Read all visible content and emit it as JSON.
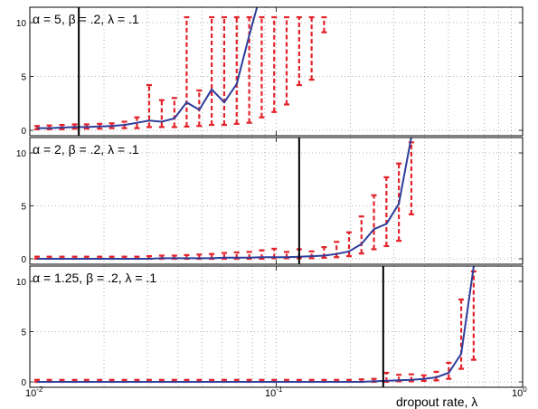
{
  "chart_data": [
    {
      "type": "line",
      "annotation": "α = 5,  β = .2,  λ = .1",
      "xscale": "log",
      "xlim": [
        0.01,
        1
      ],
      "ylim": [
        0,
        10
      ],
      "yticks": [
        0,
        5,
        10
      ],
      "grid": "dotted",
      "threshold_x": 0.0158,
      "x": [
        0.0107,
        0.012,
        0.0135,
        0.0152,
        0.017,
        0.0192,
        0.0215,
        0.0242,
        0.0272,
        0.0305,
        0.0343,
        0.0386,
        0.0433,
        0.0487,
        0.0547,
        0.0615,
        0.0691,
        0.0777,
        0.0873,
        0.0981,
        0.1102,
        0.1239,
        0.1392,
        0.1564
      ],
      "mean": [
        0.2,
        0.2,
        0.25,
        0.3,
        0.3,
        0.35,
        0.4,
        0.5,
        0.7,
        0.9,
        0.8,
        1.1,
        2.6,
        1.9,
        3.8,
        2.6,
        4.3,
        8.8,
        13,
        null,
        null,
        null,
        null,
        null
      ],
      "error_low": [
        0.1,
        0.1,
        0.1,
        0.15,
        0.15,
        0.15,
        0.2,
        0.2,
        0.2,
        0.3,
        0.3,
        0.3,
        0.35,
        0.4,
        0.5,
        0.5,
        0.6,
        0.7,
        1.2,
        1.7,
        2.4,
        4.2,
        4.7,
        9.1
      ],
      "error_high": [
        0.4,
        0.45,
        0.5,
        0.55,
        0.55,
        0.6,
        0.65,
        0.8,
        1.2,
        4.2,
        2.8,
        3.0,
        10.5,
        3.7,
        10.5,
        10.5,
        10.5,
        10.5,
        10.5,
        10.5,
        10.5,
        10.5,
        10.5,
        10.5
      ]
    },
    {
      "type": "line",
      "annotation": "α = 2,  β = .2,  λ = .1",
      "xscale": "log",
      "xlim": [
        0.01,
        1
      ],
      "ylim": [
        0,
        10
      ],
      "yticks": [
        0,
        5,
        10
      ],
      "grid": "dotted",
      "threshold_x": 0.1239,
      "x": [
        0.0107,
        0.012,
        0.0135,
        0.0152,
        0.017,
        0.0192,
        0.0215,
        0.0242,
        0.0272,
        0.0305,
        0.0343,
        0.0386,
        0.0433,
        0.0487,
        0.0547,
        0.0615,
        0.0691,
        0.0777,
        0.0873,
        0.0981,
        0.1102,
        0.1239,
        0.1392,
        0.1564,
        0.1757,
        0.1974,
        0.2218,
        0.2492,
        0.28,
        0.3146,
        0.3535,
        0.3972
      ],
      "mean": [
        0.0,
        0.0,
        0.0,
        0.0,
        0.0,
        0.0,
        0.0,
        0.0,
        0.0,
        0.0,
        0.05,
        0.05,
        0.05,
        0.05,
        0.05,
        0.1,
        0.1,
        0.1,
        0.15,
        0.15,
        0.15,
        0.2,
        0.25,
        0.3,
        0.45,
        0.7,
        1.4,
        2.8,
        3.3,
        5.2,
        11.5,
        null
      ],
      "error_low": [
        0.0,
        0.0,
        0.0,
        0.0,
        0.0,
        0.0,
        0.0,
        0.0,
        0.0,
        0.0,
        0.0,
        0.0,
        0.0,
        0.0,
        0.0,
        0.0,
        0.0,
        0.0,
        0.0,
        0.05,
        0.05,
        0.05,
        0.05,
        0.1,
        0.15,
        0.25,
        0.5,
        0.9,
        1.2,
        1.7,
        4.2,
        null
      ],
      "error_high": [
        0.2,
        0.2,
        0.2,
        0.2,
        0.2,
        0.2,
        0.2,
        0.2,
        0.2,
        0.25,
        0.3,
        0.3,
        0.35,
        0.4,
        0.45,
        0.55,
        0.6,
        0.65,
        0.8,
        0.95,
        0.65,
        0.9,
        0.7,
        1.1,
        1.6,
        2.5,
        4.0,
        6.0,
        7.7,
        9.0,
        11.0,
        null
      ]
    },
    {
      "type": "line",
      "annotation": "α = 1.25,  β = .2,  λ = .1",
      "xscale": "log",
      "xlim": [
        0.01,
        1
      ],
      "ylim": [
        0,
        10
      ],
      "yticks": [
        0,
        5,
        10
      ],
      "xticks": [
        "10",
        "10",
        "10"
      ],
      "xtick_exponents": [
        "-2",
        "-1",
        "0"
      ],
      "xlabel": "dropout rate, λ",
      "grid": "dotted",
      "threshold_x": 0.2718,
      "x": [
        0.0107,
        0.012,
        0.0135,
        0.0152,
        0.017,
        0.0192,
        0.0215,
        0.0242,
        0.0272,
        0.0305,
        0.0343,
        0.0386,
        0.0433,
        0.0487,
        0.0547,
        0.0615,
        0.0691,
        0.0777,
        0.0873,
        0.0981,
        0.1102,
        0.1239,
        0.1392,
        0.1564,
        0.1757,
        0.1974,
        0.2218,
        0.2492,
        0.28,
        0.3146,
        0.3535,
        0.3972,
        0.4462,
        0.5014,
        0.5633,
        0.6329,
        0.7111
      ],
      "mean": [
        0.0,
        0.0,
        0.0,
        0.0,
        0.0,
        0.0,
        0.0,
        0.0,
        0.0,
        0.0,
        0.0,
        0.0,
        0.0,
        0.0,
        0.0,
        0.0,
        0.0,
        0.0,
        0.0,
        0.0,
        0.0,
        0.0,
        0.0,
        0.0,
        0.0,
        0.0,
        0.0,
        0.05,
        0.1,
        0.15,
        0.2,
        0.3,
        0.45,
        0.9,
        2.8,
        11.5,
        null
      ],
      "error_low": [
        0.0,
        0.0,
        0.0,
        0.0,
        0.0,
        0.0,
        0.0,
        0.0,
        0.0,
        0.0,
        0.0,
        0.0,
        0.0,
        0.0,
        0.0,
        0.0,
        0.0,
        0.0,
        0.0,
        0.0,
        0.0,
        0.0,
        0.0,
        0.0,
        0.0,
        0.0,
        0.0,
        0.0,
        0.0,
        0.05,
        0.05,
        0.1,
        0.15,
        0.3,
        1.3,
        2.2,
        null
      ],
      "error_high": [
        0.2,
        0.2,
        0.2,
        0.2,
        0.2,
        0.2,
        0.2,
        0.2,
        0.2,
        0.2,
        0.2,
        0.2,
        0.2,
        0.2,
        0.2,
        0.2,
        0.2,
        0.2,
        0.2,
        0.2,
        0.2,
        0.2,
        0.2,
        0.2,
        0.2,
        0.2,
        0.25,
        0.3,
        0.9,
        0.7,
        0.75,
        0.65,
        1.0,
        1.9,
        8.2,
        11.0,
        null
      ]
    }
  ],
  "colors": {
    "mean_line": "#2e3e9a",
    "error_bars": "#e3222a",
    "threshold": "#000000",
    "grid": "#9a9a9a",
    "frame": "#000000"
  }
}
